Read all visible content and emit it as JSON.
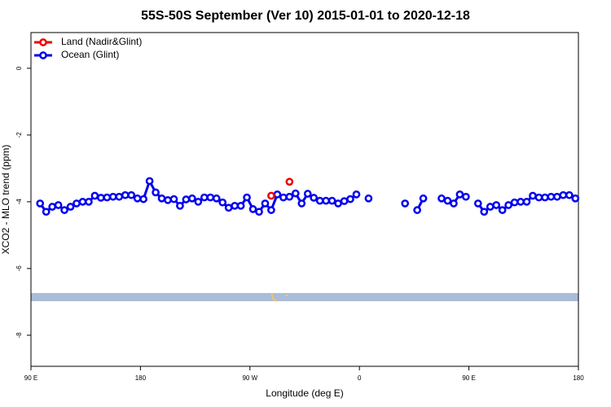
{
  "chart_data": {
    "type": "line",
    "title": "55S-50S September (Ver 10)   2015-01-01 to 2020-12-18",
    "xlabel": "Longitude (deg E)",
    "ylabel": "XCO2 - MLO trend (ppm)",
    "xlim": [
      90,
      540
    ],
    "xticks": [
      {
        "value": 90,
        "label": "90 E"
      },
      180,
      {
        "value": 270,
        "label": "90 W"
      },
      {
        "value": 360,
        "label": "0"
      },
      {
        "value": 450,
        "label": "90 E"
      },
      {
        "value": 540,
        "label": "180"
      }
    ],
    "ylim": [
      -8.93,
      1.07
    ],
    "yticks": [
      0,
      -2,
      -4,
      -6,
      -8
    ],
    "legend": "top-left",
    "series": [
      {
        "name": "Ocean (Glint)",
        "color": "#0000ee",
        "x": [
          97.5,
          102.5,
          107.5,
          112.5,
          117.5,
          122.5,
          127.5,
          132.5,
          137.5,
          142.5,
          147.5,
          152.5,
          157.5,
          162.5,
          167.5,
          172.5,
          177.5,
          182.5,
          187.5,
          192.5,
          197.5,
          202.5,
          207.5,
          212.5,
          217.5,
          222.5,
          227.5,
          232.5,
          237.5,
          242.5,
          247.5,
          252.5,
          257.5,
          262.5,
          267.5,
          272.5,
          277.5,
          282.5,
          287.5,
          292.5,
          297.5,
          302.5,
          307.5,
          312.5,
          317.5,
          322.5,
          327.5,
          332.5,
          337.5,
          342.5,
          347.5,
          352.5,
          357.5,
          362.5,
          367.5,
          372.5,
          377.5,
          382.5,
          387.5,
          392.5,
          397.5,
          402.5,
          407.5,
          412.5,
          417.5,
          422.5,
          427.5,
          432.5,
          437.5,
          442.5,
          447.5,
          452.5,
          457.5,
          462.5,
          467.5,
          472.5,
          477.5,
          482.5,
          487.5,
          492.5,
          497.5,
          502.5,
          507.5,
          512.5,
          517.5,
          522.5,
          527.5,
          532.5,
          537.5
        ],
        "values": [
          -4.05,
          -4.3,
          -4.15,
          -4.1,
          -4.25,
          -4.15,
          -4.05,
          -4.0,
          -4.0,
          -3.82,
          -3.88,
          -3.87,
          -3.85,
          -3.85,
          -3.8,
          -3.8,
          -3.9,
          -3.92,
          -3.38,
          -3.72,
          -3.9,
          -3.95,
          -3.92,
          -4.12,
          -3.93,
          -3.9,
          -4.0,
          -3.87,
          -3.87,
          -3.9,
          -4.02,
          -4.18,
          -4.12,
          -4.12,
          -3.87,
          -4.22,
          -4.3,
          -4.05,
          -4.25,
          -3.78,
          -3.87,
          -3.85,
          -3.75,
          -4.05,
          -3.76,
          -3.88,
          -3.97,
          -3.97,
          -3.97,
          -4.05,
          -3.98,
          -3.92,
          -3.78,
          null,
          -3.9,
          null,
          null,
          null,
          null,
          null,
          -4.05,
          null,
          -4.25,
          -3.9,
          null,
          null,
          -3.9,
          -3.97,
          -4.05,
          -3.78,
          -3.85,
          null,
          -4.05,
          -4.3,
          -4.15,
          -4.1,
          -4.25,
          -4.1,
          -4.02,
          -4.0,
          -4.0,
          -3.82,
          -3.87,
          -3.87,
          -3.85,
          -3.85,
          -3.8,
          -3.8,
          -3.9
        ]
      },
      {
        "name": "Land (Nadir&Glint)",
        "color": "#ee0000",
        "x": [
          287.5,
          292.5,
          297.5,
          302.5
        ],
        "values": [
          -3.82,
          null,
          null,
          -3.4
        ]
      }
    ]
  }
}
